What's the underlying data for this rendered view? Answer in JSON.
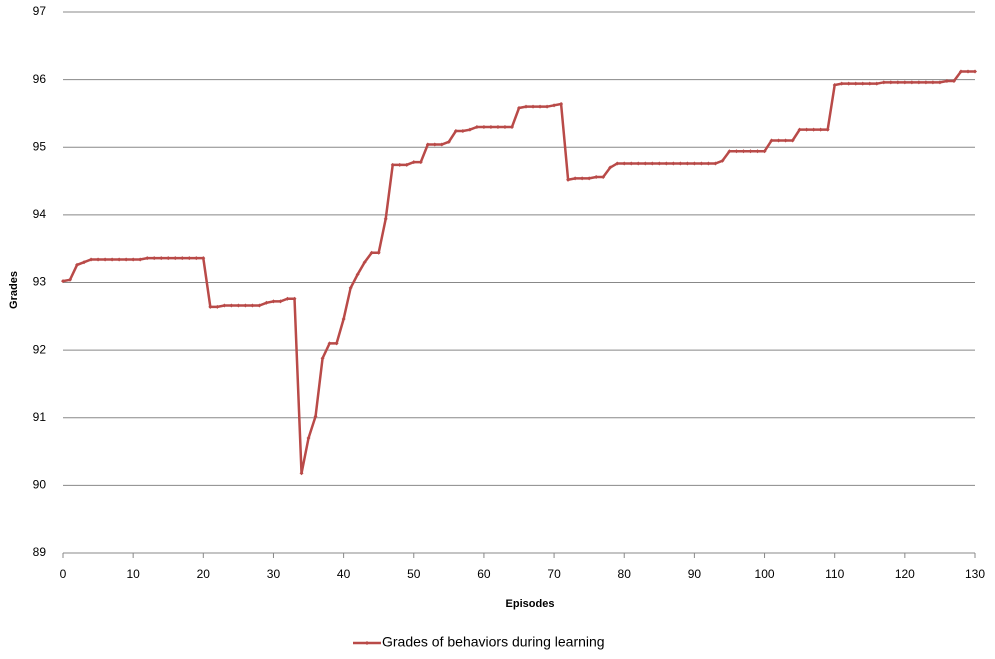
{
  "chart_data": {
    "type": "line",
    "xlabel": "Episodes",
    "ylabel": "Grades",
    "x": [
      0,
      1,
      2,
      3,
      4,
      5,
      6,
      7,
      8,
      9,
      10,
      11,
      12,
      13,
      14,
      15,
      16,
      17,
      18,
      19,
      20,
      21,
      22,
      23,
      24,
      25,
      26,
      27,
      28,
      29,
      30,
      31,
      32,
      33,
      34,
      35,
      36,
      37,
      38,
      39,
      40,
      41,
      42,
      43,
      44,
      45,
      46,
      47,
      48,
      49,
      50,
      51,
      52,
      53,
      54,
      55,
      56,
      57,
      58,
      59,
      60,
      61,
      62,
      63,
      64,
      65,
      66,
      67,
      68,
      69,
      70,
      71,
      72,
      73,
      74,
      75,
      76,
      77,
      78,
      79,
      80,
      81,
      82,
      83,
      84,
      85,
      86,
      87,
      88,
      89,
      90,
      91,
      92,
      93,
      94,
      95,
      96,
      97,
      98,
      99,
      100,
      101,
      102,
      103,
      104,
      105,
      106,
      107,
      108,
      109,
      110,
      111,
      112,
      113,
      114,
      115,
      116,
      117,
      118,
      119,
      120,
      121,
      122,
      123,
      124,
      125,
      126,
      127,
      128,
      129,
      130
    ],
    "series": [
      {
        "name": "Grades of behaviors during learning",
        "color": "#b94a48",
        "values": [
          93.02,
          93.04,
          93.26,
          93.3,
          93.34,
          93.34,
          93.34,
          93.34,
          93.34,
          93.34,
          93.34,
          93.34,
          93.36,
          93.36,
          93.36,
          93.36,
          93.36,
          93.36,
          93.36,
          93.36,
          93.36,
          92.64,
          92.64,
          92.66,
          92.66,
          92.66,
          92.66,
          92.66,
          92.66,
          92.7,
          92.72,
          92.72,
          92.76,
          92.76,
          90.18,
          90.7,
          91.02,
          91.88,
          92.1,
          92.1,
          92.46,
          92.92,
          93.12,
          93.3,
          93.44,
          93.44,
          93.94,
          94.74,
          94.74,
          94.74,
          94.78,
          94.78,
          95.04,
          95.04,
          95.04,
          95.08,
          95.24,
          95.24,
          95.26,
          95.3,
          95.3,
          95.3,
          95.3,
          95.3,
          95.3,
          95.58,
          95.6,
          95.6,
          95.6,
          95.6,
          95.62,
          95.64,
          94.52,
          94.54,
          94.54,
          94.54,
          94.56,
          94.56,
          94.7,
          94.76,
          94.76,
          94.76,
          94.76,
          94.76,
          94.76,
          94.76,
          94.76,
          94.76,
          94.76,
          94.76,
          94.76,
          94.76,
          94.76,
          94.76,
          94.8,
          94.94,
          94.94,
          94.94,
          94.94,
          94.94,
          94.94,
          95.1,
          95.1,
          95.1,
          95.1,
          95.26,
          95.26,
          95.26,
          95.26,
          95.26,
          95.92,
          95.94,
          95.94,
          95.94,
          95.94,
          95.94,
          95.94,
          95.96,
          95.96,
          95.96,
          95.96,
          95.96,
          95.96,
          95.96,
          95.96,
          95.96,
          95.98,
          95.98,
          96.12,
          96.12,
          96.12
        ]
      }
    ],
    "xlim": [
      0,
      130
    ],
    "xticks": [
      0,
      10,
      20,
      30,
      40,
      50,
      60,
      70,
      80,
      90,
      100,
      110,
      120,
      130
    ],
    "ylim": [
      89,
      97
    ],
    "yticks": [
      89,
      90,
      91,
      92,
      93,
      94,
      95,
      96,
      97
    ],
    "grid": true,
    "legend": "bottom"
  }
}
